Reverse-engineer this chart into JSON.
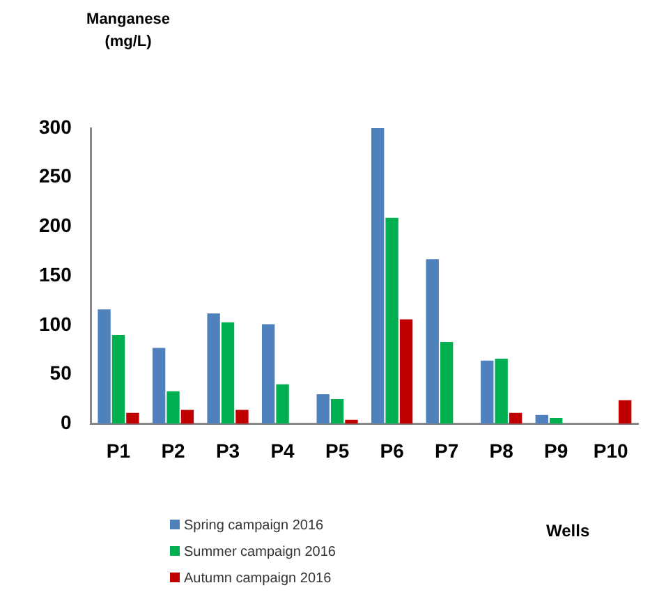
{
  "chart_data": {
    "type": "bar",
    "ylabel": "Manganese (mg/L)",
    "xlabel": "Wells",
    "categories": [
      "P1",
      "P2",
      "P3",
      "P4",
      "P5",
      "P6",
      "P7",
      "P8",
      "P9",
      "P10"
    ],
    "series": [
      {
        "name": "Spring campaign 2016",
        "color": "#4f81bd",
        "values": [
          116,
          77,
          112,
          101,
          30,
          300,
          167,
          64,
          9,
          null
        ]
      },
      {
        "name": "Summer campaign 2016",
        "color": "#00b050",
        "values": [
          90,
          33,
          103,
          40,
          25,
          209,
          83,
          66,
          6,
          null
        ]
      },
      {
        "name": "Autumn campaign 2016",
        "color": "#c00000",
        "values": [
          11,
          14,
          14,
          null,
          4,
          106,
          null,
          11,
          null,
          24
        ]
      }
    ],
    "ylim": [
      0,
      300
    ],
    "yticks": [
      0,
      50,
      100,
      150,
      200,
      250,
      300
    ],
    "grid": false,
    "legend": "bottom"
  }
}
